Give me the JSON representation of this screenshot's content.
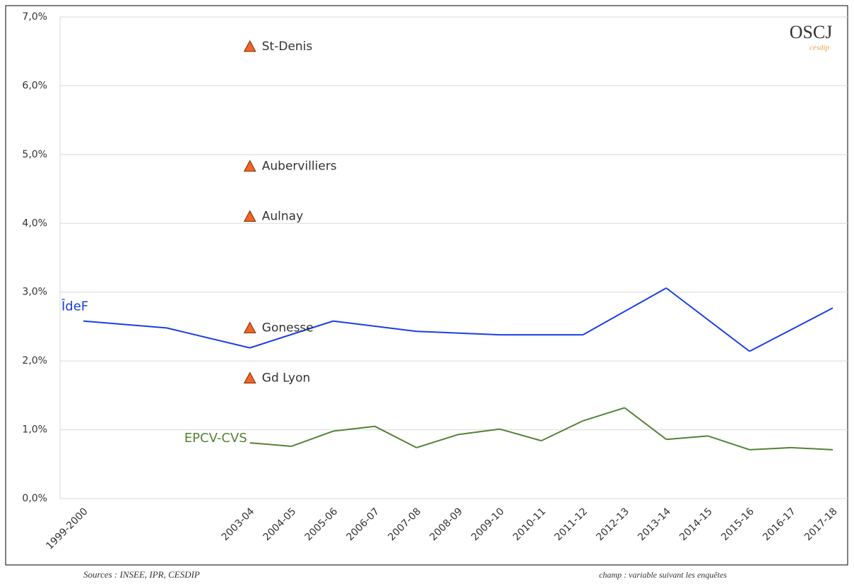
{
  "chart_data": {
    "type": "line",
    "categories": [
      "1999-2000",
      null,
      null,
      null,
      "2003-04",
      "2004-05",
      "2005-06",
      "2006-07",
      "2007-08",
      "2008-09",
      "2009-10",
      "2010-11",
      "2011-12",
      "2012-13",
      "2013-14",
      "2014-15",
      "2015-16",
      "2016-17",
      "2017-18"
    ],
    "connect_gaps": true,
    "series": [
      {
        "name": "ÎdeF",
        "color": "#1a3de6",
        "values": [
          2.58,
          null,
          2.48,
          null,
          2.19,
          null,
          2.58,
          null,
          2.43,
          null,
          2.38,
          null,
          2.38,
          null,
          3.06,
          null,
          2.14,
          null,
          2.77
        ]
      },
      {
        "name": "EPCV-CVS",
        "color": "#548235",
        "values": [
          null,
          null,
          null,
          null,
          0.81,
          0.76,
          0.98,
          1.05,
          0.74,
          0.93,
          1.01,
          0.84,
          1.13,
          1.32,
          0.86,
          0.91,
          0.71,
          0.74,
          0.71
        ]
      }
    ],
    "markers": {
      "category": "2003-04",
      "color": "#f26522",
      "points": [
        {
          "label": "St-Denis",
          "value": 6.57
        },
        {
          "label": "Aubervilliers",
          "value": 4.83
        },
        {
          "label": "Aulnay",
          "value": 4.1
        },
        {
          "label": "Gonesse",
          "value": 2.48
        },
        {
          "label": "Gd Lyon",
          "value": 1.75
        }
      ]
    },
    "ylim": [
      0,
      7
    ],
    "yticks": [
      {
        "value": 0,
        "label": "0,0%"
      },
      {
        "value": 1,
        "label": "1,0%"
      },
      {
        "value": 2,
        "label": "2,0%"
      },
      {
        "value": 3,
        "label": "3,0%"
      },
      {
        "value": 4,
        "label": "4,0%"
      },
      {
        "value": 5,
        "label": "5,0%"
      },
      {
        "value": 6,
        "label": "6,0%"
      },
      {
        "value": 7,
        "label": "7,0%"
      }
    ],
    "grid": true,
    "logo": {
      "title": "OSCJ",
      "subtitle": "cesdip"
    },
    "source": "Sources : INSEE, IPR, CESDIP",
    "note": "champ : variable suivant les enquêtes"
  }
}
